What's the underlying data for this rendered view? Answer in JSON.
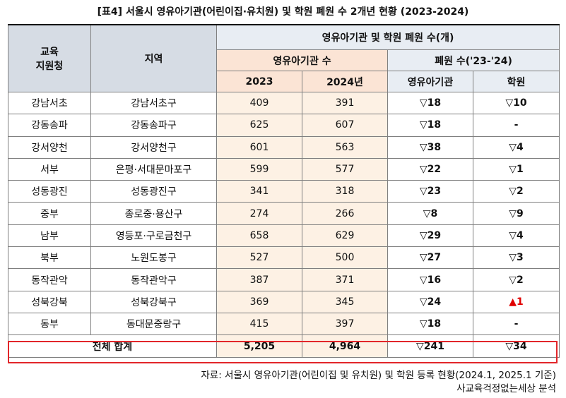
{
  "title": "[표4] 서울시 영유아기관(어린이집·유치원) 및 학원 폐원 수 2개년 현황 (2023-2024)",
  "headers": {
    "office": "교육\n지원청",
    "region": "지역",
    "group_main": "영유아기관 및 학원 폐원 수(개)",
    "group_count": "영유아기관 수",
    "group_closed": "폐원 수('23-'24)",
    "y2023": "2023",
    "y2024": "2024년",
    "closed_infant": "영유아기관",
    "closed_academy": "학원"
  },
  "rows": [
    {
      "office": "강남서초",
      "region": "강남서초구",
      "y2023": "409",
      "y2024": "391",
      "closed_infant": "▽18",
      "closed_academy": "▽10"
    },
    {
      "office": "강동송파",
      "region": "강동송파구",
      "y2023": "625",
      "y2024": "607",
      "closed_infant": "▽18",
      "closed_academy": "-"
    },
    {
      "office": "강서양천",
      "region": "강서양천구",
      "y2023": "601",
      "y2024": "563",
      "closed_infant": "▽38",
      "closed_academy": "▽4"
    },
    {
      "office": "서부",
      "region": "은평·서대문마포구",
      "y2023": "599",
      "y2024": "577",
      "closed_infant": "▽22",
      "closed_academy": "▽1"
    },
    {
      "office": "성동광진",
      "region": "성동광진구",
      "y2023": "341",
      "y2024": "318",
      "closed_infant": "▽23",
      "closed_academy": "▽2"
    },
    {
      "office": "중부",
      "region": "종로중·용산구",
      "y2023": "274",
      "y2024": "266",
      "closed_infant": "▽8",
      "closed_academy": "▽9"
    },
    {
      "office": "남부",
      "region": "영등포·구로금천구",
      "y2023": "658",
      "y2024": "629",
      "closed_infant": "▽29",
      "closed_academy": "▽4"
    },
    {
      "office": "북부",
      "region": "노원도봉구",
      "y2023": "527",
      "y2024": "500",
      "closed_infant": "▽27",
      "closed_academy": "▽3"
    },
    {
      "office": "동작관악",
      "region": "동작관악구",
      "y2023": "387",
      "y2024": "371",
      "closed_infant": "▽16",
      "closed_academy": "▽2"
    },
    {
      "office": "성북강북",
      "region": "성북강북구",
      "y2023": "369",
      "y2024": "345",
      "closed_infant": "▽24",
      "closed_academy": "▲1"
    },
    {
      "office": "동부",
      "region": "동대문중랑구",
      "y2023": "415",
      "y2024": "397",
      "closed_infant": "▽18",
      "closed_academy": "-"
    }
  ],
  "total": {
    "label": "전체 합계",
    "y2023": "5,205",
    "y2024": "4,964",
    "closed_infant": "▽241",
    "closed_academy": "▽34"
  },
  "notes": {
    "source": "자료: 서울시 영유아기관(어린이집 및 유치원) 및 학원 등록 현황(2024.1, 2025.1 기준)",
    "analysis": "사교육걱정없는세상 분석"
  },
  "colors": {
    "highlight_red": "#e00000",
    "total_border": "#e2262a"
  }
}
